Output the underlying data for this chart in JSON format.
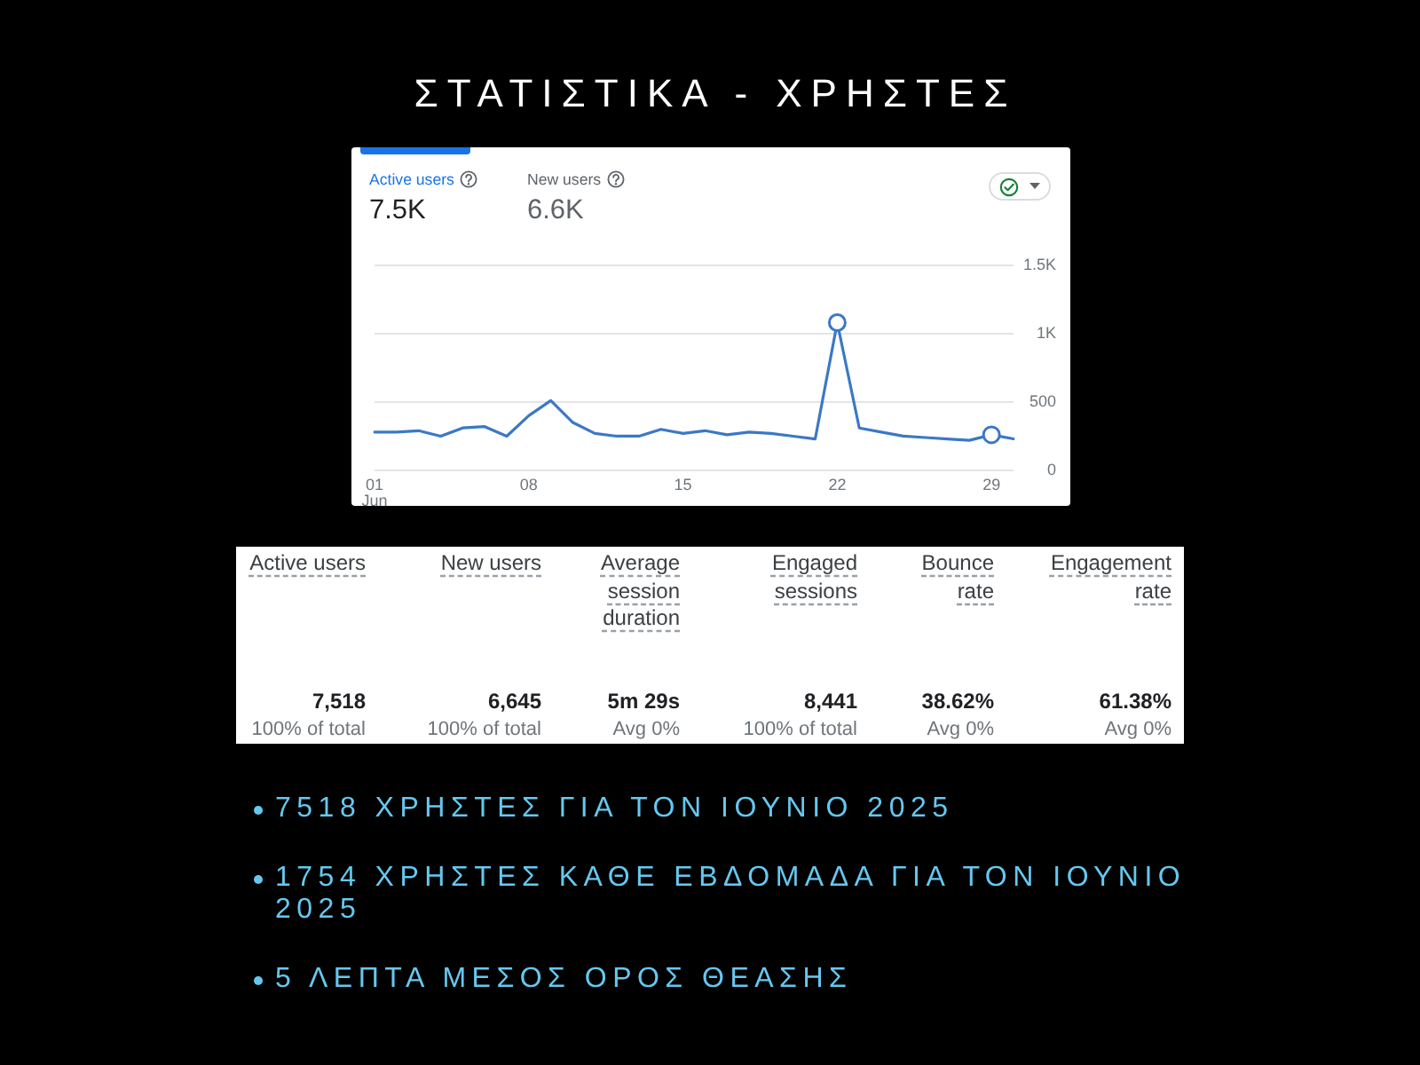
{
  "chart_data": [
    {
      "type": "line",
      "title": "ΣΤΑΤΙΣΤΙΚΑ - ΧΡΗΣΤΕΣ",
      "annotations": [
        "Active users",
        "7.5K",
        "New users",
        "6.6K"
      ],
      "categories": [
        "01\nJun",
        null,
        null,
        null,
        null,
        null,
        null,
        "08",
        null,
        null,
        null,
        null,
        null,
        null,
        "15",
        null,
        null,
        null,
        null,
        null,
        null,
        "22",
        null,
        null,
        null,
        null,
        null,
        null,
        "29",
        null
      ],
      "series": [
        {
          "color": "#3b78c6",
          "values": [
            280,
            280,
            290,
            250,
            310,
            320,
            250,
            400,
            510,
            350,
            270,
            250,
            250,
            300,
            270,
            290,
            260,
            280,
            270,
            250,
            230,
            1080,
            310,
            280,
            250,
            240,
            230,
            220,
            260,
            230
          ]
        },
        {
          "type": "scatter",
          "color": "#3b78c6",
          "marker": "circle",
          "values": [
            null,
            null,
            null,
            null,
            null,
            null,
            null,
            null,
            null,
            null,
            null,
            null,
            null,
            null,
            null,
            null,
            null,
            null,
            null,
            null,
            null,
            1080,
            null,
            null,
            null,
            null,
            null,
            null,
            260,
            null
          ]
        }
      ],
      "ylim": [
        0,
        1500
      ],
      "yticks": [
        0,
        500,
        {
          "value": 1000,
          "label": "1K"
        },
        {
          "value": 1500,
          "label": "1.5K"
        }
      ],
      "grid": "y"
    },
    {
      "type": "other",
      "categories": [
        "Active users",
        "New users",
        "Average session duration",
        "Engaged sessions",
        "Bounce rate",
        "Engagement rate"
      ],
      "value_labels": [
        "7,518",
        "6,645",
        "5m 29s",
        "8,441",
        "38.62%",
        "61.38%"
      ],
      "annotations": [
        "100% of total",
        "100% of total",
        "Avg 0%",
        "100% of total",
        "Avg 0%",
        "Avg 0%"
      ]
    },
    {
      "type": "other",
      "annotations": [
        "7518 ΧΡΗΣΤΕΣ ΓΙΑ ΤΟΝ ΙΟΥΝΙΟ 2025",
        "1754 ΧΡΗΣΤΕΣ ΚΑΘΕ ΕΒΔΟΜΑΔΑ ΓΙΑ ΤΟΝ ΙΟΥΝΙΟ 2025",
        "5 ΛΕΠΤΑ ΜΕΣΟΣ ΟΡΟΣ ΘΕΑΣΗΣ"
      ]
    }
  ]
}
